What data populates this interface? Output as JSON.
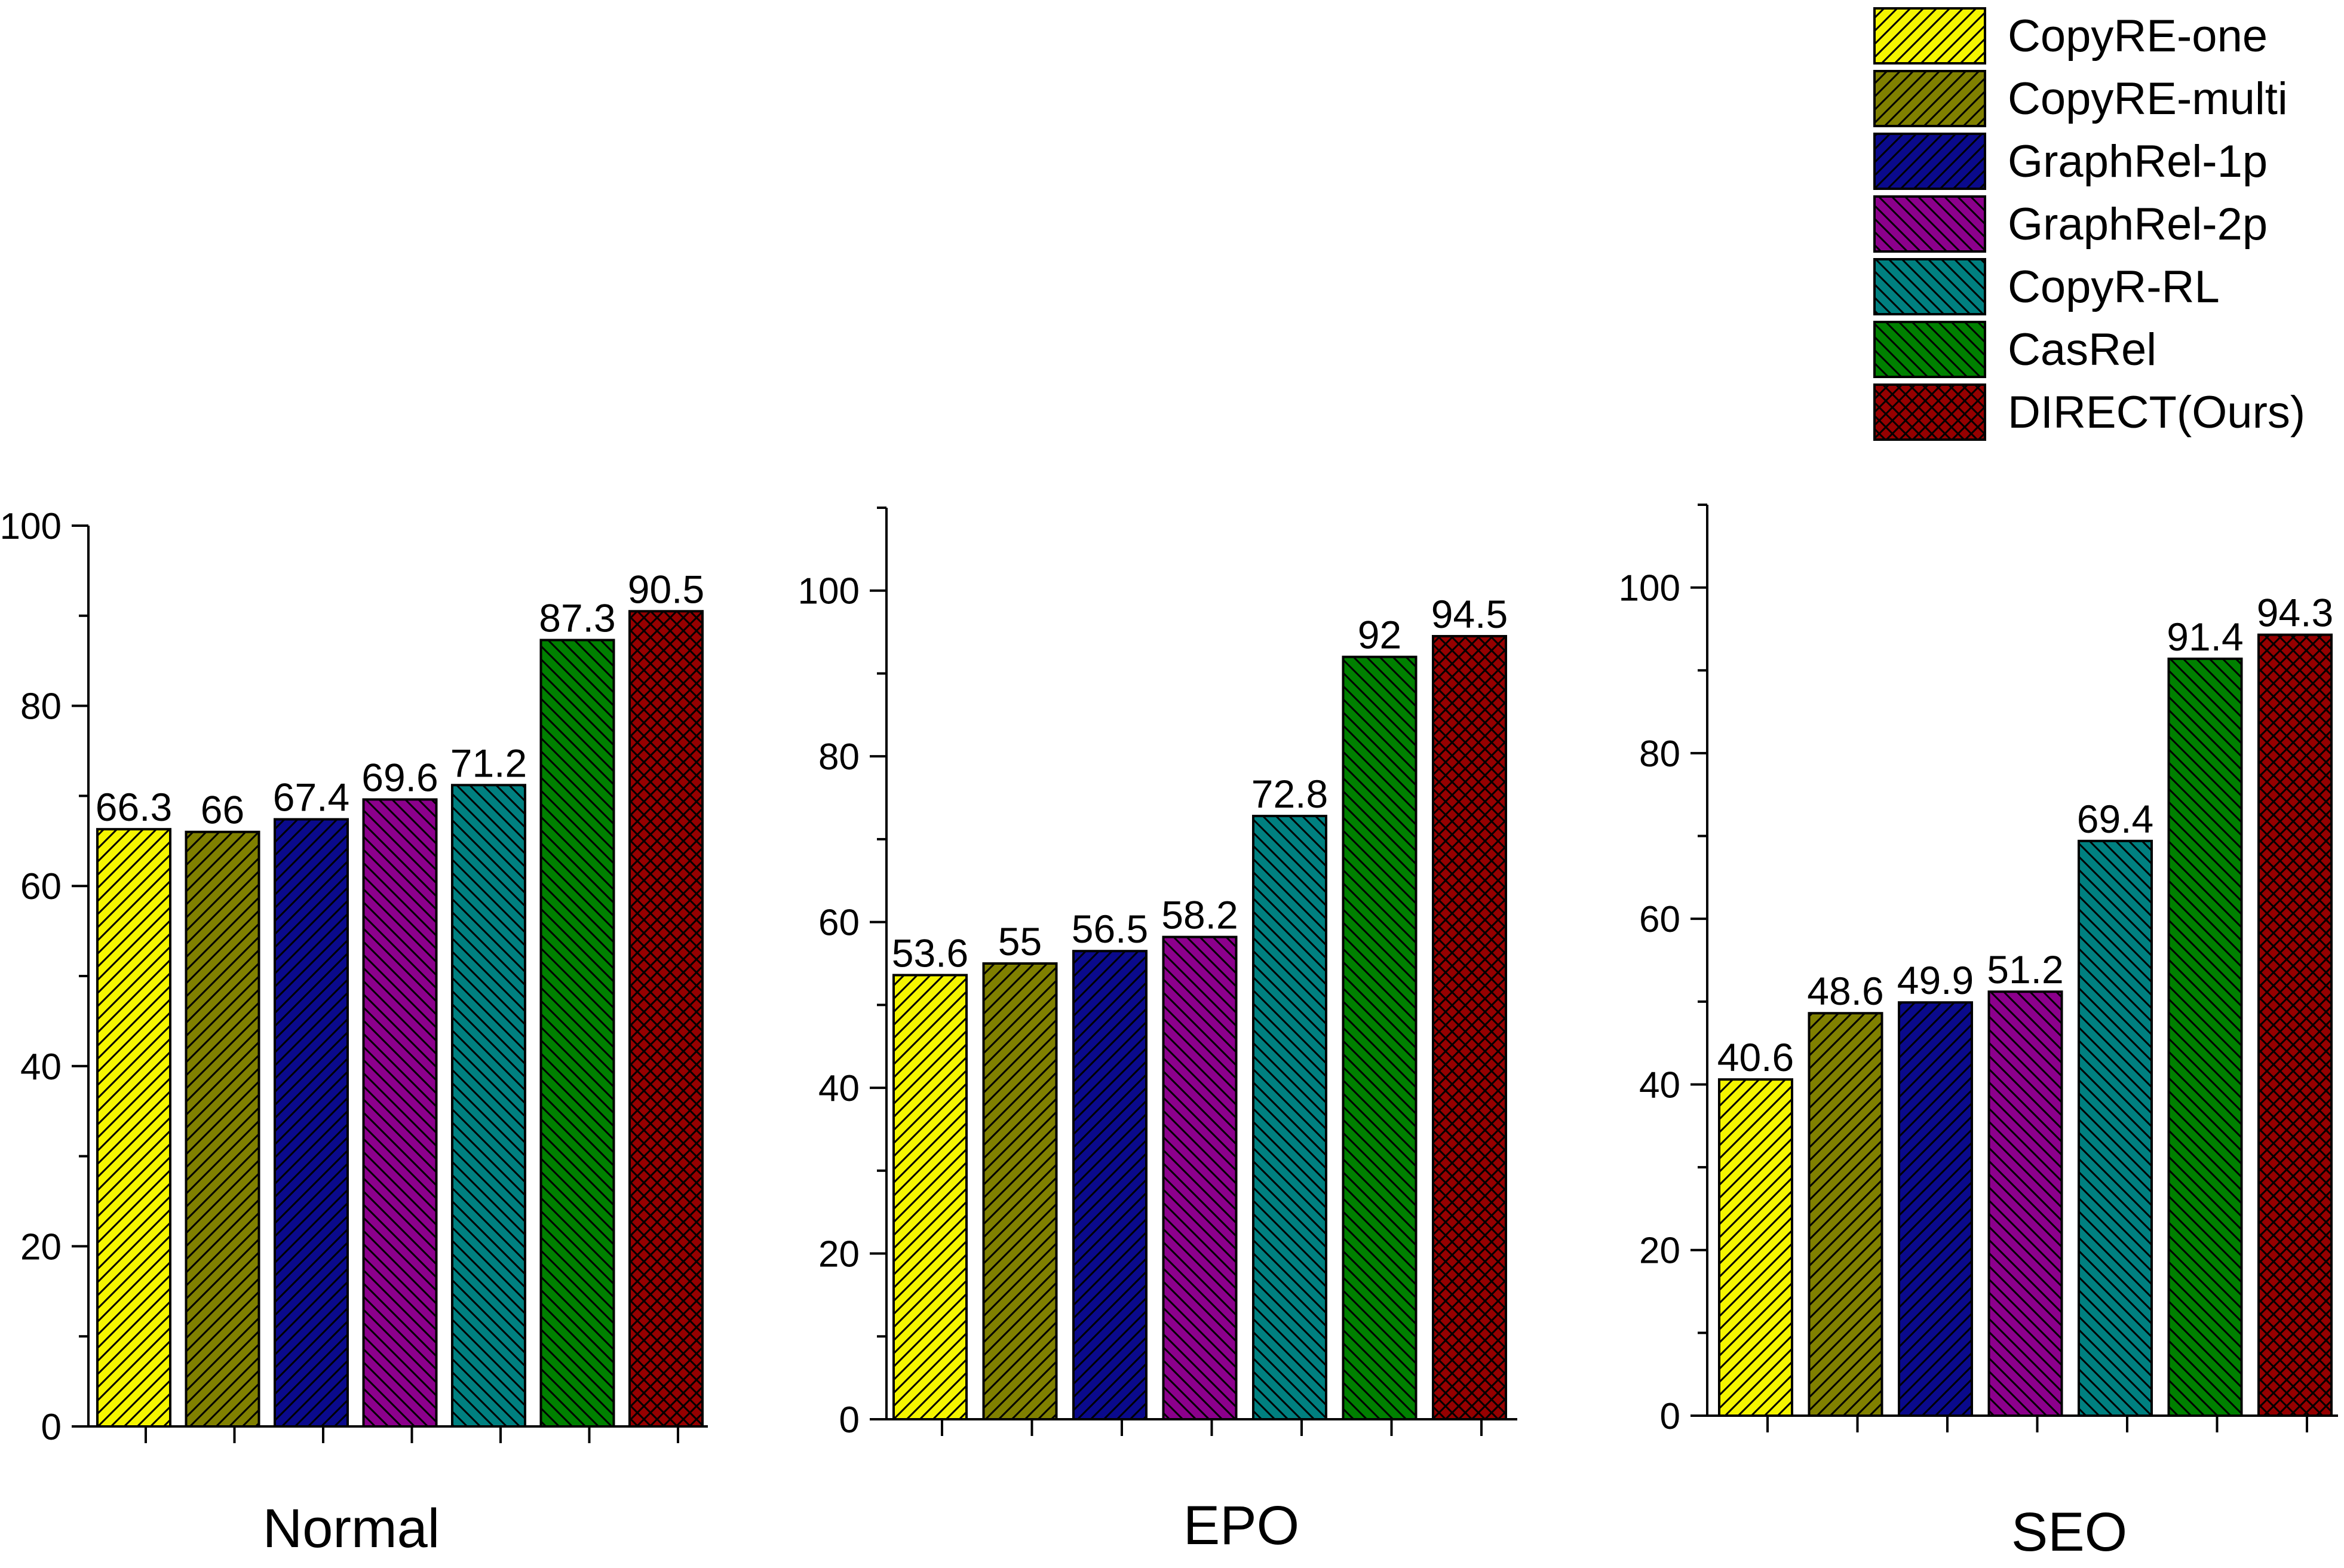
{
  "legend": {
    "placement": "top-right"
  },
  "series_styles": [
    {
      "name": "CopyRE-one",
      "color": "#f5f500",
      "pattern": "right-hatch"
    },
    {
      "name": "CopyRE-multi",
      "color": "#808000",
      "pattern": "right-hatch"
    },
    {
      "name": "GraphRel-1p",
      "color": "#0a0a8c",
      "pattern": "right-hatch"
    },
    {
      "name": "GraphRel-2p",
      "color": "#8c008c",
      "pattern": "left-hatch"
    },
    {
      "name": "CopyR-RL",
      "color": "#008080",
      "pattern": "left-hatch"
    },
    {
      "name": "CasRel",
      "color": "#008000",
      "pattern": "left-hatch"
    },
    {
      "name": "DIRECT(Ours)",
      "color": "#960000",
      "pattern": "crosshatch"
    }
  ],
  "chart_data": [
    {
      "type": "bar",
      "title": "Normal",
      "categories": [
        "CopyRE-one",
        "CopyRE-multi",
        "GraphRel-1p",
        "GraphRel-2p",
        "CopyR-RL",
        "CasRel",
        "DIRECT(Ours)"
      ],
      "values": [
        66.3,
        66,
        67.4,
        69.6,
        71.2,
        87.3,
        90.5
      ],
      "value_labels": [
        "66.3",
        "66",
        "67.4",
        "69.6",
        "71.2",
        "87.3",
        "90.5"
      ],
      "ylim": [
        0,
        100
      ],
      "yticks": [
        "0",
        "20",
        "40",
        "60",
        "80",
        "100"
      ],
      "xlabel": "Normal",
      "ylabel": ""
    },
    {
      "type": "bar",
      "title": "EPO",
      "categories": [
        "CopyRE-one",
        "CopyRE-multi",
        "GraphRel-1p",
        "GraphRel-2p",
        "CopyR-RL",
        "CasRel",
        "DIRECT(Ours)"
      ],
      "values": [
        53.6,
        55,
        56.5,
        58.2,
        72.8,
        92,
        94.5
      ],
      "value_labels": [
        "53.6",
        "55",
        "56.5",
        "58.2",
        "72.8",
        "92",
        "94.5"
      ],
      "ylim": [
        0,
        110
      ],
      "yticks": [
        "0",
        "20",
        "40",
        "60",
        "80",
        "100"
      ],
      "xlabel": "EPO",
      "ylabel": ""
    },
    {
      "type": "bar",
      "title": "SEO",
      "categories": [
        "CopyRE-one",
        "CopyRE-multi",
        "GraphRel-1p",
        "GraphRel-2p",
        "CopyR-RL",
        "CasRel",
        "DIRECT(Ours)"
      ],
      "values": [
        40.6,
        48.6,
        49.9,
        51.2,
        69.4,
        91.4,
        94.3
      ],
      "value_labels": [
        "40.6",
        "48.6",
        "49.9",
        "51.2",
        "69.4",
        "91.4",
        "94.3"
      ],
      "ylim": [
        0,
        110
      ],
      "yticks": [
        "0",
        "20",
        "40",
        "60",
        "80",
        "100"
      ],
      "xlabel": "SEO",
      "ylabel": ""
    }
  ]
}
